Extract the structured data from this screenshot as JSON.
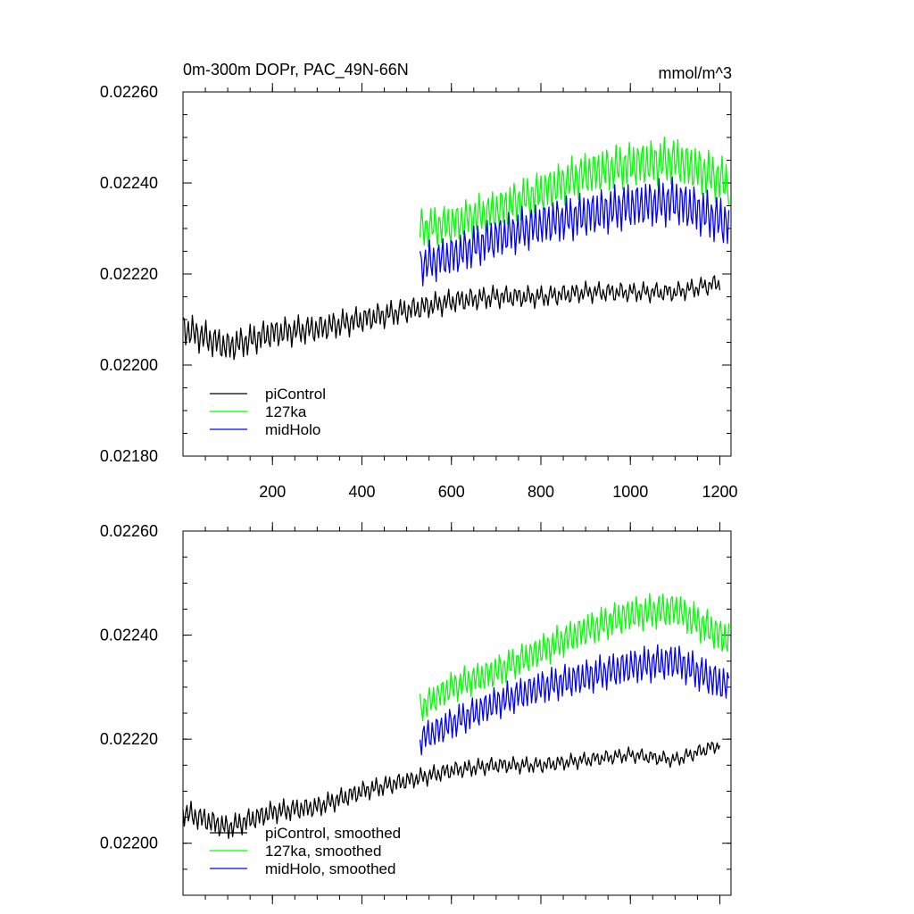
{
  "chart_data": [
    {
      "type": "line",
      "title": "0m-300m DOPr, PAC_49N-66N",
      "units": "mmol/m^3",
      "xlabel": "",
      "ylabel": "",
      "xlim": [
        0,
        1225
      ],
      "ylim": [
        0.0218,
        0.0226
      ],
      "yticks": [
        "0.02180",
        "0.02200",
        "0.02220",
        "0.02240",
        "0.02260"
      ],
      "xticks": [
        "200",
        "400",
        "600",
        "800",
        "1000",
        "1200"
      ],
      "legend": [
        "piControl",
        "127ka",
        "midHolo"
      ],
      "legend_position": "lower-left",
      "series": [
        {
          "name": "piControl",
          "color": "#000000",
          "x": [
            0,
            100,
            200,
            300,
            400,
            500,
            600,
            700,
            800,
            900,
            1000,
            1100,
            1200
          ],
          "values": [
            0.02208,
            0.02204,
            0.02207,
            0.02208,
            0.0221,
            0.02212,
            0.02214,
            0.02215,
            0.02215,
            0.02216,
            0.02216,
            0.02216,
            0.02218
          ]
        },
        {
          "name": "127ka",
          "color": "#00ff00",
          "x": [
            530,
            600,
            700,
            800,
            900,
            1000,
            1100,
            1220
          ],
          "values": [
            0.0223,
            0.02231,
            0.02234,
            0.02238,
            0.02242,
            0.02244,
            0.02245,
            0.0224
          ]
        },
        {
          "name": "midHolo",
          "color": "#0000ff",
          "x": [
            530,
            600,
            700,
            800,
            900,
            1000,
            1100,
            1220
          ],
          "values": [
            0.02222,
            0.02224,
            0.02228,
            0.02231,
            0.02233,
            0.02235,
            0.02236,
            0.02231
          ]
        }
      ]
    },
    {
      "type": "line",
      "title": "",
      "xlabel": "",
      "ylabel": "",
      "xlim": [
        0,
        1225
      ],
      "ylim": [
        0.0219,
        0.0226
      ],
      "yticks": [
        "0.02200",
        "0.02220",
        "0.02240",
        "0.02260"
      ],
      "xticks": [],
      "legend": [
        "piControl, smoothed",
        "127ka, smoothed",
        "midHolo, smoothed"
      ],
      "legend_position": "lower-left",
      "series": [
        {
          "name": "piControl, smoothed",
          "color": "#000000",
          "x": [
            0,
            100,
            200,
            300,
            400,
            500,
            600,
            700,
            800,
            900,
            1000,
            1100,
            1200
          ],
          "values": [
            0.02206,
            0.02203,
            0.02206,
            0.02207,
            0.0221,
            0.02212,
            0.02214,
            0.02215,
            0.02215,
            0.02216,
            0.02217,
            0.02216,
            0.02219
          ]
        },
        {
          "name": "127ka, smoothed",
          "color": "#00ff00",
          "x": [
            530,
            600,
            700,
            800,
            900,
            1000,
            1100,
            1220
          ],
          "values": [
            0.02226,
            0.0223,
            0.02233,
            0.02237,
            0.02241,
            0.02244,
            0.02245,
            0.02239
          ]
        },
        {
          "name": "midHolo, smoothed",
          "color": "#0000ff",
          "x": [
            530,
            600,
            700,
            800,
            900,
            1000,
            1100,
            1220
          ],
          "values": [
            0.0222,
            0.02223,
            0.02227,
            0.0223,
            0.02232,
            0.02234,
            0.02235,
            0.0223
          ]
        }
      ]
    }
  ]
}
